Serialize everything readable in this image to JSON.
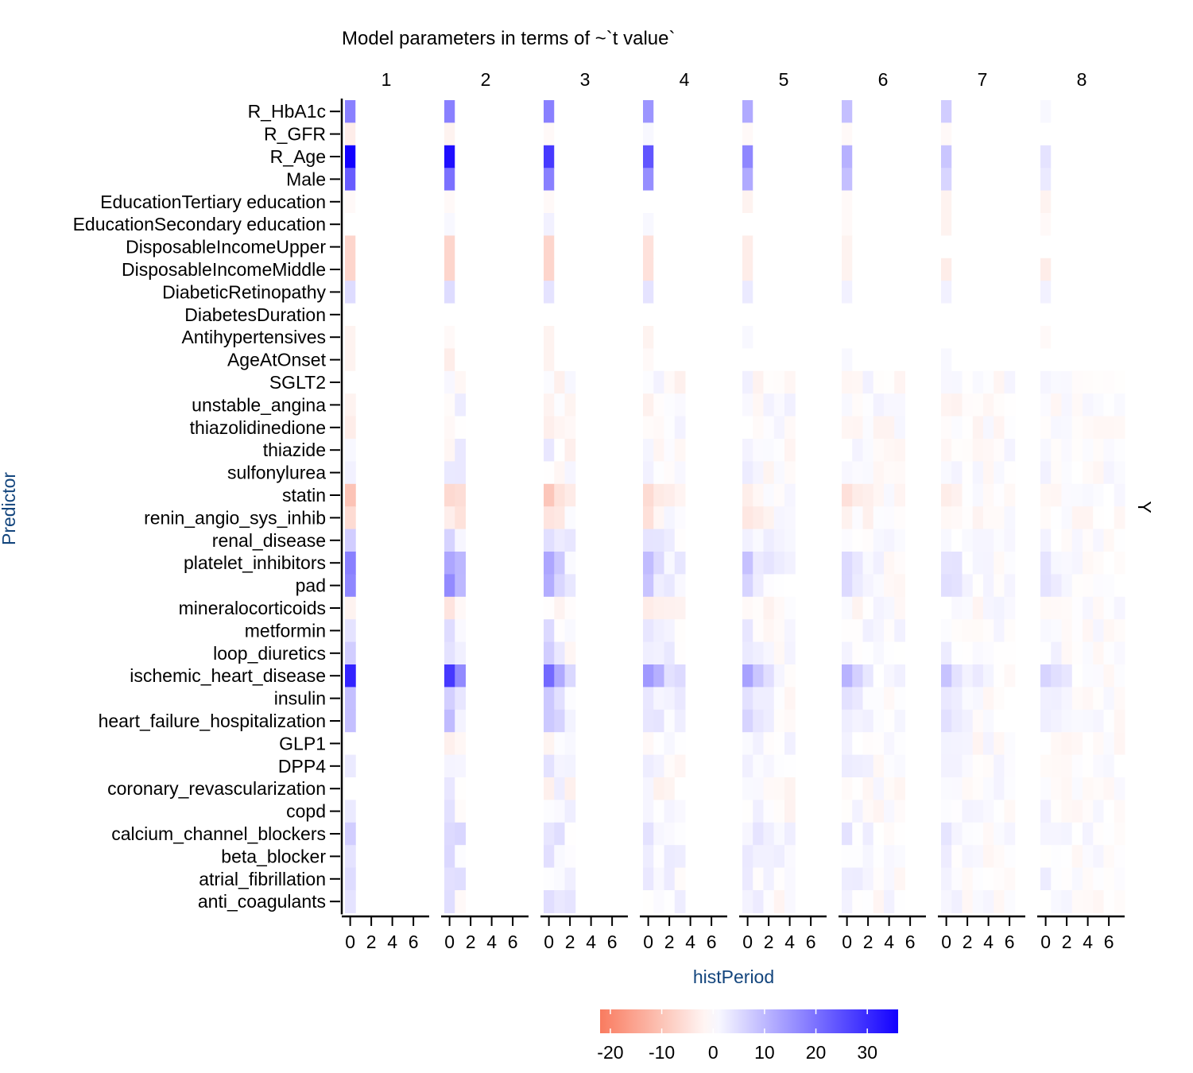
{
  "chart_data": {
    "type": "heatmap",
    "title": "Model parameters in terms of ~`t value`",
    "xlabel": "histPeriod",
    "ylabel": "Predictor",
    "facet_side_label": "Y",
    "facets": [
      "1",
      "2",
      "3",
      "4",
      "5",
      "6",
      "7",
      "8"
    ],
    "x_ticks": [
      "0",
      "2",
      "4",
      "6"
    ],
    "x_range": [
      -0.5,
      7.5
    ],
    "legend": {
      "position": "bottom",
      "ticks": [
        "-20",
        "-10",
        "0",
        "10",
        "20",
        "30"
      ],
      "range": [
        -22,
        36
      ],
      "low_color": "#f97b5f",
      "mid_color": "#ffffff",
      "high_color": "#1200ff"
    },
    "predictors": [
      "R_HbA1c",
      "R_GFR",
      "R_Age",
      "Male",
      "EducationTertiary education",
      "EducationSecondary education",
      "DisposableIncomeUpper",
      "DisposableIncomeMiddle",
      "DiabeticRetinopathy",
      "DiabetesDuration",
      "Antihypertensives",
      "AgeAtOnset",
      "SGLT2",
      "unstable_angina",
      "thiazolidinedione",
      "thiazide",
      "sulfonylurea",
      "statin",
      "renin_angio_sys_inhib",
      "renal_disease",
      "platelet_inhibitors",
      "pad",
      "mineralocorticoids",
      "metformin",
      "loop_diuretics",
      "ischemic_heart_disease",
      "insulin",
      "heart_failure_hospitalization",
      "GLP1",
      "DPP4",
      "coronary_revascularization",
      "copd",
      "calcium_channel_blockers",
      "beta_blocker",
      "atrial_fibrillation",
      "anti_coagulants"
    ],
    "static_predictor_count": 12,
    "static_values": [
      [
        18,
        18,
        18,
        15,
        12,
        9,
        7,
        1
      ],
      [
        -3,
        -2,
        -1,
        1,
        -1,
        -1,
        -1,
        0
      ],
      [
        36,
        34,
        28,
        24,
        17,
        11,
        8,
        4
      ],
      [
        23,
        20,
        18,
        16,
        12,
        9,
        6,
        3
      ],
      [
        -1,
        -1,
        -1,
        0,
        -2,
        -1,
        -2,
        -2
      ],
      [
        0,
        1,
        2,
        1,
        0,
        -1,
        -2,
        -1
      ],
      [
        -7,
        -7,
        -7,
        -5,
        -3,
        -2,
        0,
        0
      ],
      [
        -7,
        -7,
        -7,
        -5,
        -3,
        -2,
        -3,
        -3
      ],
      [
        5,
        5,
        4,
        4,
        3,
        2,
        2,
        2
      ],
      [
        0,
        0,
        0,
        0,
        0,
        0,
        0,
        0
      ],
      [
        -2,
        -1,
        -2,
        -2,
        1,
        0,
        0,
        -1
      ],
      [
        -2,
        -3,
        -2,
        -1,
        0,
        1,
        1,
        0
      ]
    ],
    "dynamic_values_period0": [
      0,
      -2,
      -3,
      1,
      2,
      -10,
      -6,
      7,
      18,
      17,
      -2,
      4,
      7,
      31,
      9,
      9,
      0,
      3,
      0,
      3,
      7,
      4,
      5,
      4
    ],
    "dynamic_values_note_free": true,
    "value_range": [
      -22,
      36
    ]
  }
}
